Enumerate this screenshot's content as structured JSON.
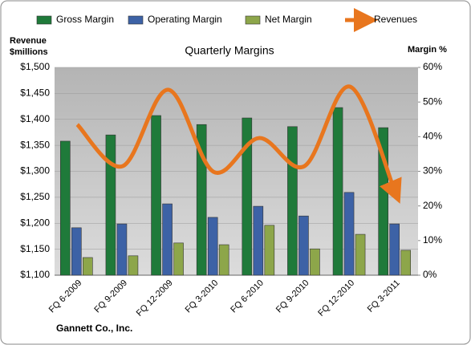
{
  "chart_data": {
    "type": "bar_line",
    "title": "Quarterly Margins",
    "ylabel": "Revenue $millions",
    "y2label": "Margin %",
    "source": "Gannett Co., Inc.",
    "categories": [
      "FQ 6-2009",
      "FQ 9-2009",
      "FQ 12-2009",
      "FQ 3-2010",
      "FQ 6-2010",
      "FQ 9-2010",
      "FQ 12-2010",
      "FQ 3-2011"
    ],
    "series": [
      {
        "name": "Gross Margin",
        "color": "#1f7a3a",
        "axis": "y2",
        "type": "bar",
        "values": [
          38.7,
          40.5,
          46.1,
          43.5,
          45.4,
          42.9,
          48.4,
          42.6
        ]
      },
      {
        "name": "Operating Margin",
        "color": "#3d62a6",
        "axis": "y2",
        "type": "bar",
        "values": [
          13.7,
          14.8,
          20.6,
          16.7,
          19.9,
          17.1,
          23.9,
          14.8
        ]
      },
      {
        "name": "Net Margin",
        "color": "#8da64a",
        "axis": "y2",
        "type": "bar",
        "values": [
          5.1,
          5.6,
          9.3,
          8.8,
          14.4,
          7.6,
          11.8,
          7.2
        ]
      },
      {
        "name": "Revenues",
        "color": "#e8761e",
        "axis": "y",
        "type": "line",
        "values": [
          1390,
          1310,
          1457,
          1299,
          1364,
          1310,
          1463,
          1259
        ]
      }
    ],
    "ylim": [
      1100,
      1500
    ],
    "yticks": [
      {
        "value": 1100,
        "label": "$1,100"
      },
      {
        "value": 1150,
        "label": "$1,150"
      },
      {
        "value": 1200,
        "label": "$1,200"
      },
      {
        "value": 1250,
        "label": "$1,250"
      },
      {
        "value": 1300,
        "label": "$1,300"
      },
      {
        "value": 1350,
        "label": "$1,350"
      },
      {
        "value": 1400,
        "label": "$1,400"
      },
      {
        "value": 1450,
        "label": "$1,450"
      },
      {
        "value": 1500,
        "label": "$1,500"
      }
    ],
    "y2lim": [
      0,
      60
    ],
    "y2ticks": [
      {
        "value": 0,
        "label": "0%"
      },
      {
        "value": 10,
        "label": "10%"
      },
      {
        "value": 20,
        "label": "20%"
      },
      {
        "value": 30,
        "label": "30%"
      },
      {
        "value": 40,
        "label": "40%"
      },
      {
        "value": 50,
        "label": "50%"
      },
      {
        "value": 60,
        "label": "60%"
      }
    ],
    "grid": true
  }
}
